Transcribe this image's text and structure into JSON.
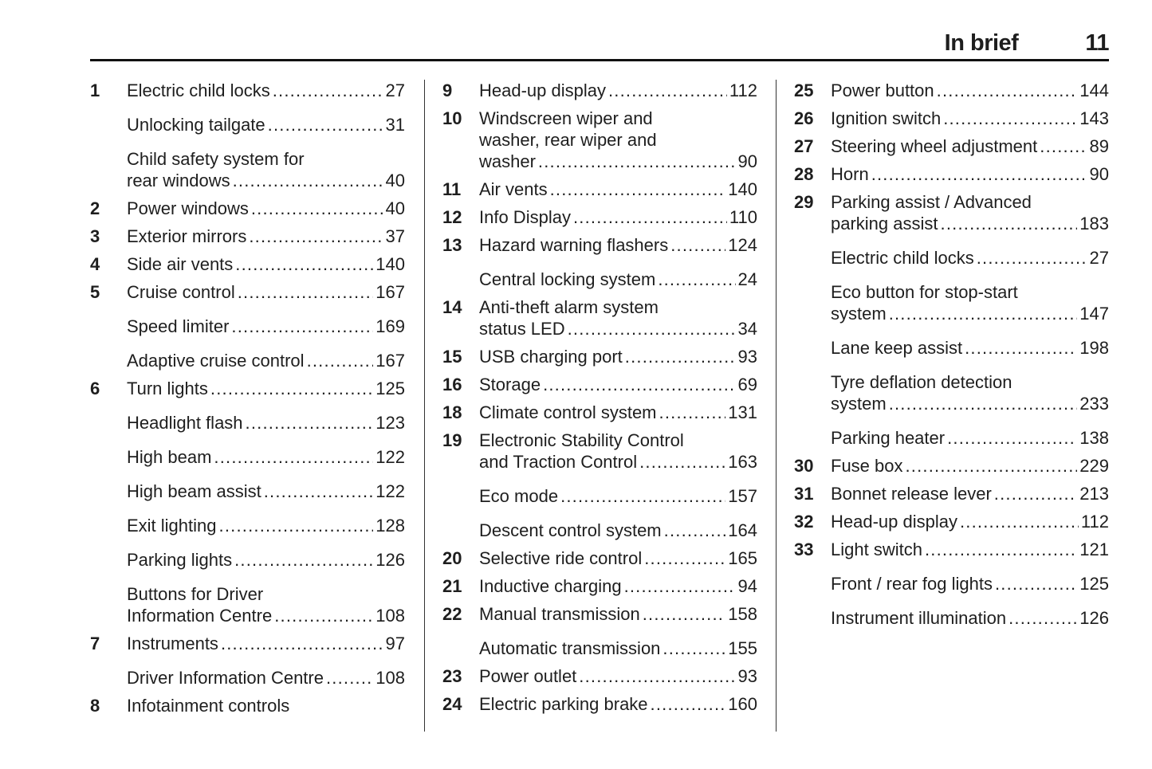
{
  "header": {
    "section": "In brief",
    "page_number": "11"
  },
  "columns": [
    {
      "entries": [
        {
          "num": "1",
          "lines": [
            "Electric child locks"
          ],
          "page": "27"
        },
        {
          "num": "",
          "lines": [
            "Unlocking tailgate"
          ],
          "page": "31"
        },
        {
          "num": "",
          "lines": [
            "Child safety system for",
            "rear windows"
          ],
          "page": "40"
        },
        {
          "num": "2",
          "lines": [
            "Power windows"
          ],
          "page": "40"
        },
        {
          "num": "3",
          "lines": [
            "Exterior mirrors"
          ],
          "page": "37"
        },
        {
          "num": "4",
          "lines": [
            "Side air vents"
          ],
          "page": "140"
        },
        {
          "num": "5",
          "lines": [
            "Cruise control"
          ],
          "page": "167"
        },
        {
          "num": "",
          "lines": [
            "Speed limiter"
          ],
          "page": "169"
        },
        {
          "num": "",
          "lines": [
            "Adaptive cruise control"
          ],
          "page": "167"
        },
        {
          "num": "6",
          "lines": [
            "Turn lights"
          ],
          "page": "125"
        },
        {
          "num": "",
          "lines": [
            "Headlight flash"
          ],
          "page": "123"
        },
        {
          "num": "",
          "lines": [
            "High beam"
          ],
          "page": "122"
        },
        {
          "num": "",
          "lines": [
            "High beam assist"
          ],
          "page": "122"
        },
        {
          "num": "",
          "lines": [
            "Exit lighting"
          ],
          "page": "128"
        },
        {
          "num": "",
          "lines": [
            "Parking lights"
          ],
          "page": "126"
        },
        {
          "num": "",
          "lines": [
            "Buttons for Driver",
            "Information Centre"
          ],
          "page": "108"
        },
        {
          "num": "7",
          "lines": [
            "Instruments"
          ],
          "page": "97"
        },
        {
          "num": "",
          "lines": [
            "Driver Information Centre"
          ],
          "page": "108"
        },
        {
          "num": "8",
          "lines": [
            "Infotainment controls"
          ],
          "page": ""
        }
      ]
    },
    {
      "entries": [
        {
          "num": "9",
          "lines": [
            "Head-up display"
          ],
          "page": "112"
        },
        {
          "num": "10",
          "lines": [
            "Windscreen wiper and",
            "washer, rear wiper and",
            "washer"
          ],
          "page": "90"
        },
        {
          "num": "11",
          "lines": [
            "Air vents"
          ],
          "page": "140"
        },
        {
          "num": "12",
          "lines": [
            "Info Display"
          ],
          "page": "110"
        },
        {
          "num": "13",
          "lines": [
            "Hazard warning flashers"
          ],
          "page": "124"
        },
        {
          "num": "",
          "lines": [
            "Central locking system"
          ],
          "page": "24"
        },
        {
          "num": "14",
          "lines": [
            "Anti-theft alarm system",
            "status LED"
          ],
          "page": "34"
        },
        {
          "num": "15",
          "lines": [
            "USB charging port"
          ],
          "page": "93"
        },
        {
          "num": "16",
          "lines": [
            "Storage"
          ],
          "page": "69"
        },
        {
          "num": "18",
          "lines": [
            "Climate control system"
          ],
          "page": "131"
        },
        {
          "num": "19",
          "lines": [
            "Electronic Stability Control",
            "and Traction Control"
          ],
          "page": "163"
        },
        {
          "num": "",
          "lines": [
            "Eco mode"
          ],
          "page": "157"
        },
        {
          "num": "",
          "lines": [
            "Descent control system"
          ],
          "page": "164"
        },
        {
          "num": "20",
          "lines": [
            "Selective ride control"
          ],
          "page": "165"
        },
        {
          "num": "21",
          "lines": [
            "Inductive charging"
          ],
          "page": "94"
        },
        {
          "num": "22",
          "lines": [
            "Manual transmission"
          ],
          "page": "158"
        },
        {
          "num": "",
          "lines": [
            "Automatic transmission"
          ],
          "page": "155"
        },
        {
          "num": "23",
          "lines": [
            "Power outlet"
          ],
          "page": "93"
        },
        {
          "num": "24",
          "lines": [
            "Electric parking brake"
          ],
          "page": "160"
        }
      ]
    },
    {
      "entries": [
        {
          "num": "25",
          "lines": [
            "Power button"
          ],
          "page": "144"
        },
        {
          "num": "26",
          "lines": [
            "Ignition switch"
          ],
          "page": "143"
        },
        {
          "num": "27",
          "lines": [
            "Steering wheel adjustment"
          ],
          "page": "89"
        },
        {
          "num": "28",
          "lines": [
            "Horn"
          ],
          "page": "90"
        },
        {
          "num": "29",
          "lines": [
            "Parking assist / Advanced",
            "parking assist"
          ],
          "page": "183"
        },
        {
          "num": "",
          "lines": [
            "Electric child locks"
          ],
          "page": "27"
        },
        {
          "num": "",
          "lines": [
            "Eco button for stop-start",
            "system"
          ],
          "page": "147"
        },
        {
          "num": "",
          "lines": [
            "Lane keep assist"
          ],
          "page": "198"
        },
        {
          "num": "",
          "lines": [
            "Tyre deflation detection",
            "system"
          ],
          "page": "233"
        },
        {
          "num": "",
          "lines": [
            "Parking heater"
          ],
          "page": "138"
        },
        {
          "num": "30",
          "lines": [
            "Fuse box"
          ],
          "page": "229"
        },
        {
          "num": "31",
          "lines": [
            "Bonnet release lever"
          ],
          "page": "213"
        },
        {
          "num": "32",
          "lines": [
            "Head-up display"
          ],
          "page": "112"
        },
        {
          "num": "33",
          "lines": [
            "Light switch"
          ],
          "page": "121"
        },
        {
          "num": "",
          "lines": [
            "Front / rear fog lights"
          ],
          "page": "125"
        },
        {
          "num": "",
          "lines": [
            "Instrument illumination"
          ],
          "page": "126"
        }
      ]
    }
  ]
}
